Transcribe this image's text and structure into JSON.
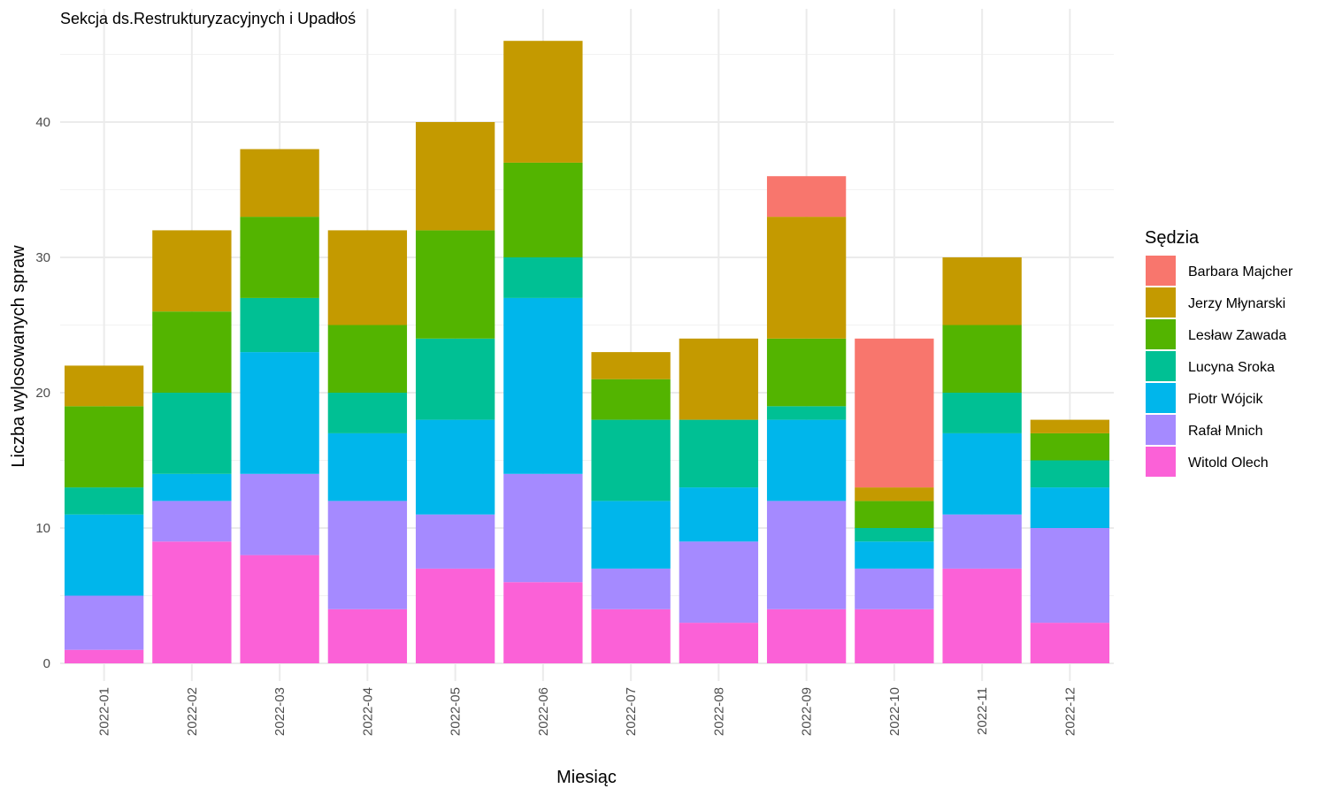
{
  "chart_data": {
    "type": "bar",
    "stacked": true,
    "title": "Sekcja ds.Restrukturyzacyjnych i Upadłoś",
    "xlabel": "Miesiąc",
    "ylabel": "Liczba wylosowanych spraw",
    "ylim": [
      0,
      46
    ],
    "yticks": [
      0,
      10,
      20,
      30,
      40
    ],
    "grid": true,
    "legend_title": "Sędzia",
    "legend_position": "right",
    "categories": [
      "2022-01",
      "2022-02",
      "2022-03",
      "2022-04",
      "2022-05",
      "2022-06",
      "2022-07",
      "2022-08",
      "2022-09",
      "2022-10",
      "2022-11",
      "2022-12"
    ],
    "series": [
      {
        "name": "Barbara Majcher",
        "color": "#F8766D",
        "values": [
          0,
          0,
          0,
          0,
          0,
          0,
          0,
          0,
          3,
          11,
          0,
          0
        ]
      },
      {
        "name": "Jerzy Młynarski",
        "color": "#C49A00",
        "values": [
          3,
          6,
          5,
          7,
          8,
          9,
          2,
          6,
          9,
          1,
          5,
          1
        ]
      },
      {
        "name": "Lesław Zawada",
        "color": "#53B400",
        "values": [
          6,
          6,
          6,
          5,
          8,
          7,
          3,
          0,
          5,
          2,
          5,
          2
        ]
      },
      {
        "name": "Lucyna Sroka",
        "color": "#00C094",
        "values": [
          2,
          6,
          4,
          3,
          6,
          3,
          6,
          5,
          1,
          1,
          3,
          2
        ]
      },
      {
        "name": "Piotr Wójcik",
        "color": "#00B6EB",
        "values": [
          6,
          2,
          9,
          5,
          7,
          13,
          5,
          4,
          6,
          2,
          6,
          3
        ]
      },
      {
        "name": "Rafał Mnich",
        "color": "#A58AFF",
        "values": [
          4,
          3,
          6,
          8,
          4,
          8,
          3,
          6,
          8,
          3,
          4,
          7
        ]
      },
      {
        "name": "Witold Olech",
        "color": "#FB61D7",
        "values": [
          1,
          9,
          8,
          4,
          7,
          6,
          4,
          3,
          4,
          4,
          7,
          3
        ]
      }
    ]
  }
}
